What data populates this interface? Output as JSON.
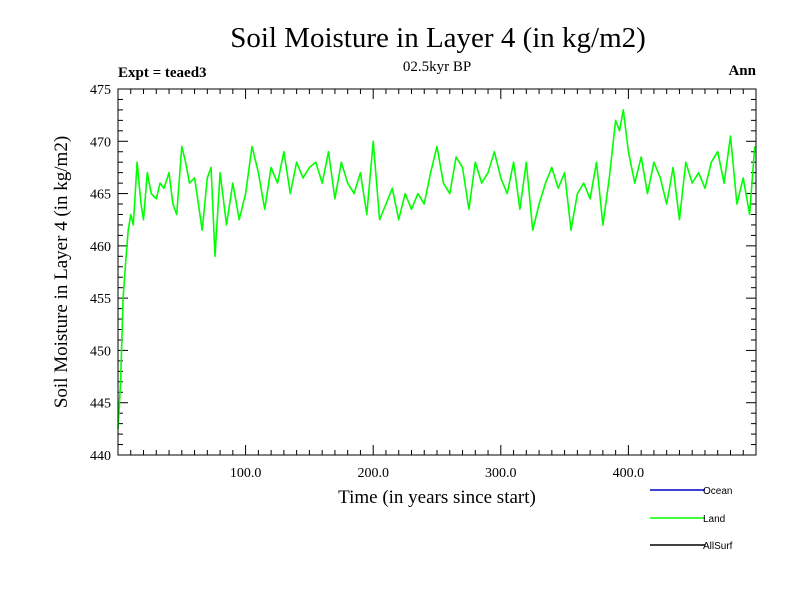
{
  "chart_data": {
    "type": "line",
    "title": "Soil Moisture in Layer 4 (in kg/m2)",
    "subtitle": "02.5kyr BP",
    "experiment_label": "Expt = teaed3",
    "period_label": "Ann",
    "xlabel": "Time (in years since start)",
    "ylabel": "Soil Moisture in Layer 4 (in kg/m2)",
    "xlim": [
      0,
      500
    ],
    "ylim": [
      440,
      475
    ],
    "x_ticks": [
      100,
      200,
      300,
      400
    ],
    "x_tick_labels": [
      "100.0",
      "200.0",
      "300.0",
      "400.0"
    ],
    "y_ticks": [
      440,
      445,
      450,
      455,
      460,
      465,
      470,
      475
    ],
    "y_tick_labels": [
      "440",
      "445",
      "450",
      "455",
      "460",
      "465",
      "470",
      "475"
    ],
    "legend": [
      {
        "name": "Ocean",
        "color": "#0000cc"
      },
      {
        "name": "Land",
        "color": "#00ff00"
      },
      {
        "name": "AllSurf",
        "color": "#000000"
      }
    ],
    "series": [
      {
        "name": "Land",
        "color": "#00ff00",
        "x": [
          0,
          2,
          4,
          6,
          8,
          10,
          12,
          15,
          18,
          20,
          23,
          26,
          30,
          33,
          36,
          40,
          43,
          46,
          50,
          53,
          56,
          60,
          63,
          66,
          70,
          73,
          76,
          80,
          85,
          90,
          95,
          100,
          105,
          110,
          115,
          120,
          125,
          130,
          135,
          140,
          145,
          150,
          155,
          160,
          165,
          170,
          175,
          180,
          185,
          190,
          195,
          200,
          205,
          210,
          215,
          220,
          225,
          230,
          235,
          240,
          245,
          250,
          255,
          260,
          265,
          270,
          275,
          280,
          285,
          290,
          295,
          300,
          305,
          310,
          315,
          320,
          325,
          330,
          335,
          340,
          345,
          350,
          355,
          360,
          365,
          370,
          375,
          380,
          385,
          390,
          393,
          396,
          400,
          405,
          410,
          415,
          420,
          425,
          430,
          435,
          440,
          445,
          450,
          455,
          460,
          465,
          470,
          475,
          480,
          485,
          490,
          495,
          499
        ],
        "values": [
          442.5,
          447,
          455,
          458.5,
          461.5,
          463,
          462,
          468,
          464,
          462.5,
          467,
          465,
          464.5,
          466,
          465.5,
          467,
          464,
          463,
          469.5,
          468,
          466,
          466.5,
          464,
          461.5,
          466.5,
          467.5,
          459,
          467,
          462,
          466,
          462.5,
          465,
          469.5,
          467,
          463.5,
          467.5,
          466,
          469,
          465,
          468,
          466.5,
          467.5,
          468,
          466,
          469,
          464.5,
          468,
          466,
          465,
          467,
          463,
          470,
          462.5,
          464,
          465.5,
          462.5,
          465,
          463.5,
          465,
          464,
          467,
          469.5,
          466,
          465,
          468.5,
          467.5,
          463.5,
          468,
          466,
          467,
          469,
          466.5,
          465,
          468,
          463.5,
          468,
          461.5,
          464,
          466,
          467.5,
          465.5,
          467,
          461.5,
          465,
          466,
          464.5,
          468,
          462,
          466.5,
          472,
          471,
          473,
          469,
          466,
          468.5,
          465,
          468,
          466.5,
          464,
          467.5,
          462.5,
          468,
          466,
          467,
          465.5,
          468,
          469,
          466,
          470.5,
          464,
          466.5,
          463,
          469.5
        ]
      }
    ]
  }
}
